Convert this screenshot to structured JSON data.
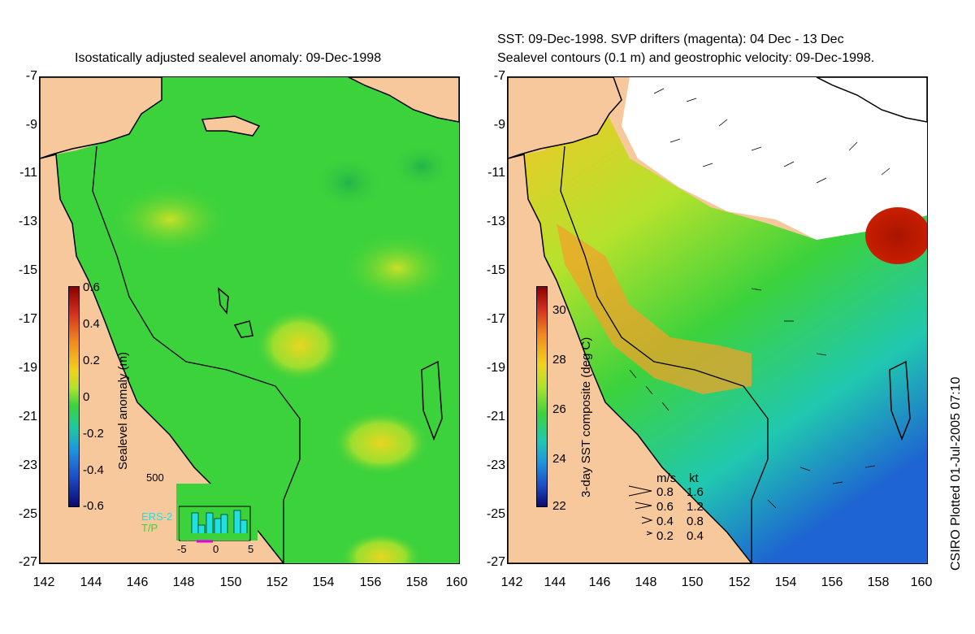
{
  "left_panel": {
    "title": "Isostatically adjusted sealevel anomaly: 09-Dec-1998",
    "colorbar": {
      "label": "Sealevel anomaly (m)",
      "ticks": [
        "0.6",
        "0.4",
        "0.2",
        "0",
        "-0.2",
        "-0.4",
        "-0.6"
      ]
    },
    "inset": {
      "y_tick": "500",
      "x_ticks": [
        "-5",
        "0",
        "5"
      ],
      "legend": [
        "ERS-2",
        "T/P"
      ]
    }
  },
  "right_panel": {
    "title_line1": "SST: 09-Dec-1998. SVP drifters (magenta): 04 Dec - 13 Dec",
    "title_line2": "Sealevel contours (0.1 m) and geostrophic velocity: 09-Dec-1998.",
    "colorbar": {
      "label": "3-day SST composite (deg C)",
      "ticks": [
        "30",
        "28",
        "26",
        "24",
        "22"
      ]
    },
    "speed_legend": {
      "header_ms": "m/s",
      "header_kt": "kt",
      "rows": [
        {
          "ms": "0.8",
          "kt": "1.6"
        },
        {
          "ms": "0.6",
          "kt": "1.2"
        },
        {
          "ms": "0.4",
          "kt": "0.8"
        },
        {
          "ms": "0.2",
          "kt": "0.4"
        }
      ]
    }
  },
  "axes": {
    "y_ticks": [
      "-7",
      "-9",
      "-11",
      "-13",
      "-15",
      "-17",
      "-19",
      "-21",
      "-23",
      "-25",
      "-27"
    ],
    "x_ticks": [
      "142",
      "144",
      "146",
      "148",
      "150",
      "152",
      "154",
      "156",
      "158",
      "160"
    ]
  },
  "credit": "CSIRO Plotted 01-Jul-2005 07:10",
  "colors": {
    "land": "#f7c89b",
    "ocean_green": "#3cd23c",
    "sst_orange": "#f2a22a",
    "missing_white": "#ffffff",
    "hot_red": "#aa1400"
  }
}
